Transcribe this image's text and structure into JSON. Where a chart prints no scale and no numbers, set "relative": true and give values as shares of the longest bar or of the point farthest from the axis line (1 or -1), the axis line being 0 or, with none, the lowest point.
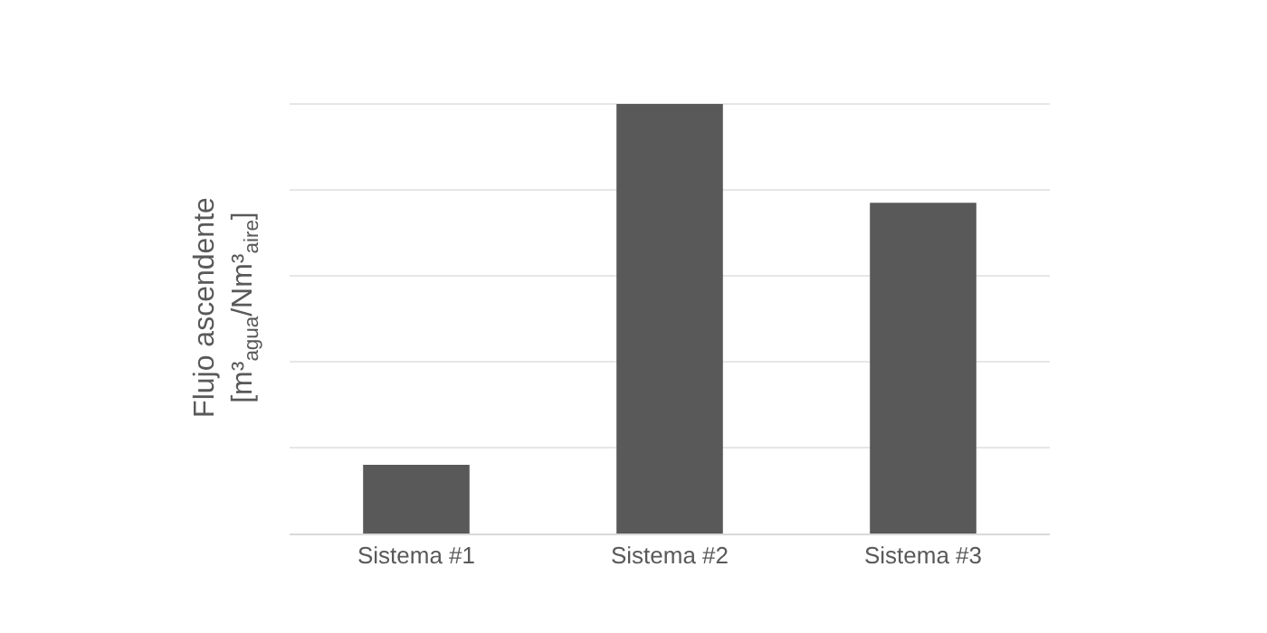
{
  "chart_data": {
    "type": "bar",
    "relative": true,
    "ylabel": "Flujo ascendente\n[m³$_{agua}$/Nm³$_{aire}$]",
    "categories": [
      "Sistema #1",
      "Sistema #2",
      "Sistema #3"
    ],
    "values": [
      0.16,
      1,
      0.77
    ],
    "color": "#595959",
    "grid": "y",
    "legend": false
  }
}
